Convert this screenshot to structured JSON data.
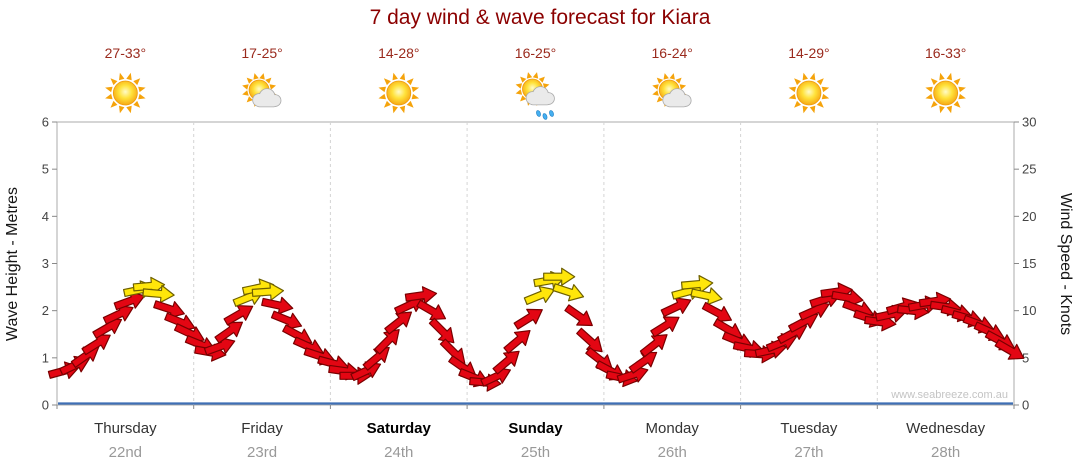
{
  "title": "7 day wind & wave forecast for Kiara",
  "watermark": "www.seabreeze.com.au",
  "axes": {
    "left_label": "Wave Height - Metres",
    "right_label": "Wind Speed - Knots",
    "left_ticks": [
      0,
      1,
      2,
      3,
      4,
      5,
      6
    ],
    "right_ticks": [
      0,
      5,
      10,
      15,
      20,
      25,
      30
    ]
  },
  "days": [
    {
      "name": "Thursday",
      "date": "22nd",
      "temp": "27-33°",
      "icon": "sunny",
      "weekend": false
    },
    {
      "name": "Friday",
      "date": "23rd",
      "temp": "17-25°",
      "icon": "partly-cloudy",
      "weekend": false
    },
    {
      "name": "Saturday",
      "date": "24th",
      "temp": "14-28°",
      "icon": "sunny",
      "weekend": true
    },
    {
      "name": "Sunday",
      "date": "25th",
      "temp": "16-25°",
      "icon": "showers",
      "weekend": true
    },
    {
      "name": "Monday",
      "date": "26th",
      "temp": "16-24°",
      "icon": "partly-cloudy",
      "weekend": false
    },
    {
      "name": "Tuesday",
      "date": "27th",
      "temp": "14-29°",
      "icon": "sunny",
      "weekend": false
    },
    {
      "name": "Wednesday",
      "date": "28th",
      "temp": "16-33°",
      "icon": "sunny",
      "weekend": false
    }
  ],
  "colors": {
    "title": "#8B0000",
    "arrow_red_fill": "#E30613",
    "arrow_red_outline": "#7A0000",
    "arrow_yellow_fill": "#FFE60A",
    "arrow_yellow_outline": "#6E6000",
    "wave_baseline": "#3F6FB5"
  },
  "chart_data": {
    "type": "wind-arrows-line",
    "title": "7 day wind & wave forecast for Kiara",
    "ylabel_left": "Wave Height - Metres",
    "ylabel_right": "Wind Speed - Knots",
    "ylim_left_metres": [
      0,
      6
    ],
    "ylim_right_knots": [
      0,
      30
    ],
    "x_range_days": [
      0,
      7
    ],
    "categories": [
      "Thursday 22nd",
      "Friday 23rd",
      "Saturday 24th",
      "Sunday 25th",
      "Monday 26th",
      "Tuesday 27th",
      "Wednesday 28th"
    ],
    "grid": "vertical day separators only",
    "wave_height_series": {
      "constant_m": 0
    },
    "point_format": [
      "t_days",
      "knots",
      "dir_deg",
      "color"
    ],
    "color_codes": {
      "r": "red",
      "y": "yellow"
    },
    "points": [
      [
        0.05,
        3.6,
        -15,
        "r"
      ],
      [
        0.13,
        4.2,
        -25,
        "r"
      ],
      [
        0.21,
        5.2,
        -35,
        "r"
      ],
      [
        0.29,
        6.5,
        -32,
        "r"
      ],
      [
        0.37,
        8.2,
        -30,
        "r"
      ],
      [
        0.45,
        9.6,
        -25,
        "r"
      ],
      [
        0.53,
        11.0,
        -20,
        "r"
      ],
      [
        0.6,
        12.2,
        -12,
        "y"
      ],
      [
        0.67,
        12.6,
        -5,
        "y"
      ],
      [
        0.74,
        11.8,
        5,
        "y"
      ],
      [
        0.82,
        10.2,
        18,
        "r"
      ],
      [
        0.9,
        8.8,
        22,
        "r"
      ],
      [
        0.97,
        7.6,
        25,
        "r"
      ],
      [
        1.05,
        6.4,
        22,
        "r"
      ],
      [
        1.12,
        5.6,
        10,
        "r"
      ],
      [
        1.19,
        6.2,
        -20,
        "r"
      ],
      [
        1.26,
        7.8,
        -35,
        "r"
      ],
      [
        1.33,
        9.6,
        -30,
        "r"
      ],
      [
        1.4,
        11.4,
        -22,
        "y"
      ],
      [
        1.47,
        12.4,
        -12,
        "y"
      ],
      [
        1.54,
        12.0,
        -4,
        "y"
      ],
      [
        1.61,
        10.6,
        12,
        "r"
      ],
      [
        1.68,
        9.0,
        22,
        "r"
      ],
      [
        1.76,
        7.4,
        28,
        "r"
      ],
      [
        1.84,
        6.2,
        24,
        "r"
      ],
      [
        1.92,
        5.2,
        18,
        "r"
      ],
      [
        2.02,
        4.4,
        15,
        "r"
      ],
      [
        2.1,
        3.6,
        8,
        "r"
      ],
      [
        2.18,
        3.1,
        0,
        "r"
      ],
      [
        2.26,
        3.6,
        -25,
        "r"
      ],
      [
        2.34,
        5.0,
        -40,
        "r"
      ],
      [
        2.42,
        6.8,
        -45,
        "r"
      ],
      [
        2.5,
        8.8,
        -38,
        "r"
      ],
      [
        2.58,
        10.6,
        -25,
        "r"
      ],
      [
        2.66,
        11.6,
        -8,
        "r"
      ],
      [
        2.74,
        10.0,
        30,
        "r"
      ],
      [
        2.82,
        7.8,
        45,
        "r"
      ],
      [
        2.9,
        5.6,
        45,
        "r"
      ],
      [
        2.97,
        4.0,
        35,
        "r"
      ],
      [
        3.05,
        2.9,
        22,
        "r"
      ],
      [
        3.13,
        2.4,
        5,
        "r"
      ],
      [
        3.21,
        3.0,
        -25,
        "r"
      ],
      [
        3.29,
        4.6,
        -40,
        "r"
      ],
      [
        3.37,
        6.8,
        -40,
        "r"
      ],
      [
        3.45,
        9.2,
        -32,
        "r"
      ],
      [
        3.53,
        11.6,
        -22,
        "y"
      ],
      [
        3.6,
        13.2,
        -10,
        "y"
      ],
      [
        3.67,
        13.6,
        0,
        "y"
      ],
      [
        3.74,
        12.0,
        18,
        "y"
      ],
      [
        3.82,
        9.4,
        35,
        "r"
      ],
      [
        3.9,
        6.8,
        42,
        "r"
      ],
      [
        3.97,
        4.8,
        38,
        "r"
      ],
      [
        4.05,
        3.6,
        28,
        "r"
      ],
      [
        4.13,
        2.9,
        12,
        "r"
      ],
      [
        4.21,
        3.2,
        -18,
        "r"
      ],
      [
        4.29,
        4.6,
        -35,
        "r"
      ],
      [
        4.37,
        6.4,
        -38,
        "r"
      ],
      [
        4.45,
        8.4,
        -32,
        "r"
      ],
      [
        4.53,
        10.4,
        -25,
        "r"
      ],
      [
        4.61,
        12.0,
        -15,
        "y"
      ],
      [
        4.68,
        12.8,
        -5,
        "y"
      ],
      [
        4.75,
        11.6,
        12,
        "y"
      ],
      [
        4.83,
        9.8,
        28,
        "r"
      ],
      [
        4.91,
        8.0,
        30,
        "r"
      ],
      [
        4.98,
        6.8,
        22,
        "r"
      ],
      [
        5.06,
        6.0,
        12,
        "r"
      ],
      [
        5.14,
        5.4,
        4,
        "r"
      ],
      [
        5.22,
        5.8,
        -12,
        "r"
      ],
      [
        5.3,
        6.6,
        -22,
        "r"
      ],
      [
        5.38,
        7.6,
        -28,
        "r"
      ],
      [
        5.46,
        8.8,
        -28,
        "r"
      ],
      [
        5.54,
        10.0,
        -24,
        "r"
      ],
      [
        5.62,
        11.2,
        -18,
        "r"
      ],
      [
        5.7,
        12.0,
        -8,
        "r"
      ],
      [
        5.78,
        11.4,
        10,
        "r"
      ],
      [
        5.86,
        10.2,
        20,
        "r"
      ],
      [
        5.94,
        9.2,
        18,
        "r"
      ],
      [
        6.02,
        8.8,
        8,
        "r"
      ],
      [
        6.1,
        9.6,
        -12,
        "r"
      ],
      [
        6.18,
        10.4,
        -16,
        "r"
      ],
      [
        6.26,
        10.0,
        6,
        "r"
      ],
      [
        6.34,
        10.6,
        -10,
        "r"
      ],
      [
        6.42,
        11.0,
        -8,
        "r"
      ],
      [
        6.5,
        10.4,
        8,
        "r"
      ],
      [
        6.58,
        9.8,
        14,
        "r"
      ],
      [
        6.66,
        9.2,
        16,
        "r"
      ],
      [
        6.74,
        8.6,
        20,
        "r"
      ],
      [
        6.82,
        7.8,
        24,
        "r"
      ],
      [
        6.9,
        6.8,
        28,
        "r"
      ],
      [
        6.97,
        5.8,
        30,
        "r"
      ]
    ]
  }
}
